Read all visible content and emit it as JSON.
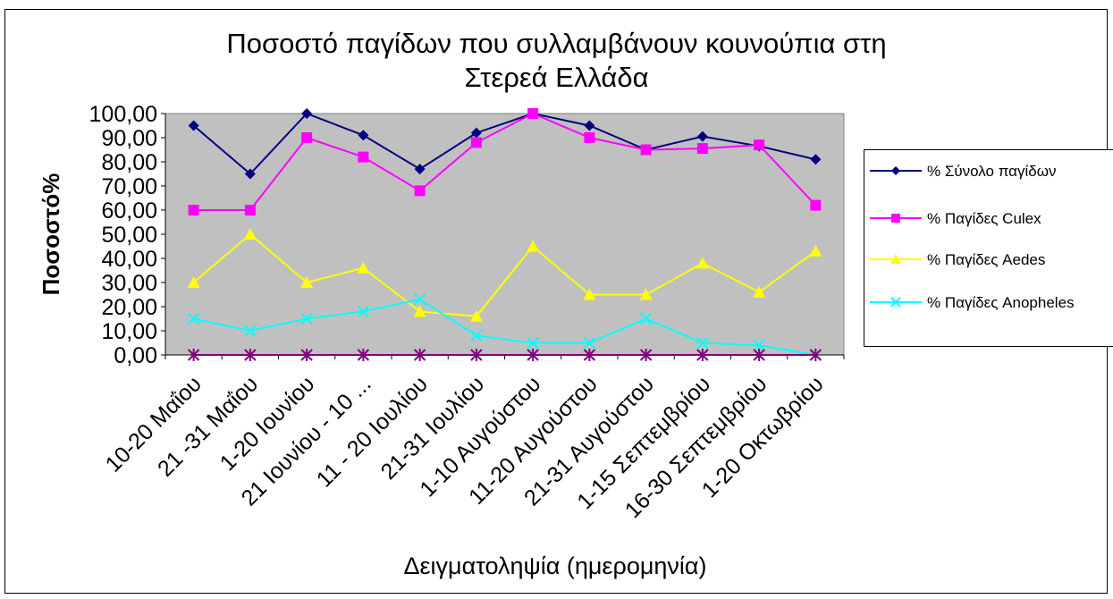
{
  "chart_data": {
    "type": "line",
    "title_lines": [
      "Ποσοστό παγίδων που συλλαμβάνουν κουνούπια στη",
      "Στερεά Ελλάδα"
    ],
    "xlabel": "Δειγματοληψία (ημερομηνία)",
    "ylabel": "Ποσοστό%",
    "categories": [
      "10-20 Μαΐου",
      "21 -31 Μαΐου",
      "1-20 Ιουνίου",
      "21 Ιουνίου - 10 ...",
      "11 - 20 Ιουλίου",
      "21-31 Ιουλίου",
      "1-10 Αυγούστου",
      "11-20 Αυγούστου",
      "21-31 Αυγούστου",
      "1-15 Σεπτεμβρίου",
      "16-30 Σεπτεμβρίου",
      "1-20 Οκτωβρίου"
    ],
    "yticks": [
      "0,00",
      "10,00",
      "20,00",
      "30,00",
      "40,00",
      "50,00",
      "60,00",
      "70,00",
      "80,00",
      "90,00",
      "100,00"
    ],
    "ylim": [
      0,
      100
    ],
    "plot_background": "#c0c0c0",
    "grid": false,
    "legend_position": "right",
    "series": [
      {
        "name": "% Σύνολο παγίδων",
        "color": "#000080",
        "marker": "diamond",
        "values": [
          95,
          75,
          100,
          91,
          77,
          92,
          100,
          95,
          85,
          90.5,
          86.5,
          81
        ]
      },
      {
        "name": "% Παγίδες Culex",
        "color": "#ff00ff",
        "marker": "square",
        "values": [
          60,
          60,
          90,
          82,
          68,
          88,
          100,
          90,
          85,
          85.5,
          87,
          62
        ]
      },
      {
        "name": "% Παγίδες Aedes",
        "color": "#ffff00",
        "marker": "triangle",
        "values": [
          30,
          50,
          30,
          36,
          18,
          16,
          45,
          25,
          25,
          38,
          26,
          43
        ]
      },
      {
        "name": "% Παγίδες Anopheles",
        "color": "#00ffff",
        "marker": "x",
        "values": [
          15,
          10,
          15,
          18,
          23,
          8,
          5,
          5,
          15,
          5,
          4,
          0
        ]
      },
      {
        "name": "",
        "color": "#800080",
        "marker": "star",
        "values": [
          0,
          0,
          0,
          0,
          0,
          0,
          0,
          0,
          0,
          0,
          0,
          0
        ]
      }
    ]
  }
}
